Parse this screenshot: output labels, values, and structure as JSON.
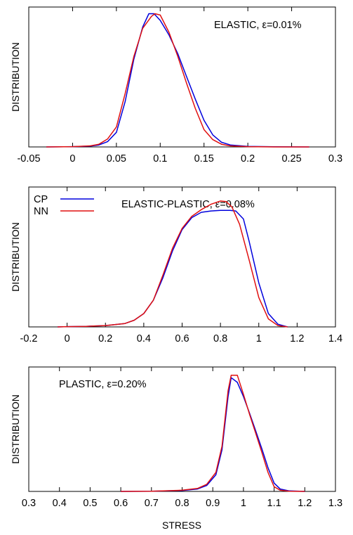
{
  "xlabel": "STRESS",
  "colors": {
    "cp": "#0000dd",
    "nn": "#e01010"
  },
  "chart_data": [
    {
      "type": "line",
      "ylabel": "DISTRIBUTION",
      "annotation": "ELASTIC, ε=0.01%",
      "xlim": [
        -0.05,
        0.3
      ],
      "ylim": [
        0,
        1.05
      ],
      "xticks": [
        "-0.05",
        "0",
        "0.05",
        "0.1",
        "0.15",
        "0.2",
        "0.25",
        "0.3"
      ],
      "xtick_values": [
        -0.05,
        0,
        0.05,
        0.1,
        0.15,
        0.2,
        0.25,
        0.3
      ],
      "series": [
        {
          "key": "cp",
          "x": [
            -0.03,
            0.0,
            0.02,
            0.03,
            0.04,
            0.05,
            0.06,
            0.07,
            0.08,
            0.087,
            0.093,
            0.1,
            0.11,
            0.12,
            0.13,
            0.14,
            0.15,
            0.16,
            0.17,
            0.18,
            0.2,
            0.23,
            0.27
          ],
          "y": [
            0,
            0.002,
            0.006,
            0.015,
            0.04,
            0.11,
            0.34,
            0.66,
            0.9,
            1.0,
            1.0,
            0.95,
            0.84,
            0.7,
            0.53,
            0.36,
            0.2,
            0.09,
            0.035,
            0.015,
            0.004,
            0.001,
            0
          ]
        },
        {
          "key": "nn",
          "x": [
            -0.03,
            0.0,
            0.02,
            0.03,
            0.04,
            0.05,
            0.06,
            0.07,
            0.08,
            0.09,
            0.094,
            0.1,
            0.11,
            0.12,
            0.13,
            0.14,
            0.15,
            0.16,
            0.17,
            0.18,
            0.2,
            0.23,
            0.27
          ],
          "y": [
            0,
            0.002,
            0.008,
            0.02,
            0.06,
            0.15,
            0.4,
            0.68,
            0.89,
            0.98,
            1.0,
            0.99,
            0.86,
            0.68,
            0.48,
            0.29,
            0.13,
            0.055,
            0.02,
            0.008,
            0.002,
            0,
            0
          ]
        }
      ]
    },
    {
      "type": "line",
      "ylabel": "DISTRIBUTION",
      "annotation": "ELASTIC-PLASTIC, ε=0.08%",
      "legend": {
        "placement": "top-left",
        "entries": [
          "CP",
          "NN"
        ]
      },
      "xlim": [
        -0.2,
        1.4
      ],
      "ylim": [
        0,
        1.05
      ],
      "xticks": [
        "-0.2",
        "0",
        "0.2",
        "0.4",
        "0.6",
        "0.8",
        "1",
        "1.2",
        "1.4"
      ],
      "xtick_values": [
        -0.2,
        0,
        0.2,
        0.4,
        0.6,
        0.8,
        1.0,
        1.2,
        1.4
      ],
      "series": [
        {
          "name": "CP",
          "key": "cp",
          "x": [
            -0.05,
            0.0,
            0.1,
            0.2,
            0.3,
            0.35,
            0.4,
            0.45,
            0.5,
            0.55,
            0.6,
            0.65,
            0.7,
            0.75,
            0.8,
            0.85,
            0.88,
            0.92,
            0.95,
            1.0,
            1.05,
            1.1,
            1.15
          ],
          "y": [
            0,
            0.002,
            0.004,
            0.01,
            0.025,
            0.05,
            0.1,
            0.2,
            0.37,
            0.57,
            0.73,
            0.82,
            0.86,
            0.87,
            0.875,
            0.875,
            0.87,
            0.81,
            0.64,
            0.33,
            0.1,
            0.02,
            0
          ]
        },
        {
          "name": "NN",
          "key": "nn",
          "x": [
            -0.05,
            0.0,
            0.1,
            0.2,
            0.3,
            0.35,
            0.4,
            0.45,
            0.5,
            0.55,
            0.6,
            0.65,
            0.7,
            0.75,
            0.8,
            0.83,
            0.86,
            0.9,
            0.95,
            1.0,
            1.05,
            1.1,
            1.15
          ],
          "y": [
            0,
            0.002,
            0.004,
            0.01,
            0.025,
            0.05,
            0.1,
            0.2,
            0.39,
            0.59,
            0.74,
            0.83,
            0.88,
            0.92,
            0.945,
            0.94,
            0.9,
            0.77,
            0.5,
            0.22,
            0.06,
            0.01,
            0
          ]
        }
      ]
    },
    {
      "type": "line",
      "ylabel": "DISTRIBUTION",
      "xlabel": "STRESS",
      "annotation": "PLASTIC, ε=0.20%",
      "xlim": [
        0.3,
        1.3
      ],
      "ylim": [
        0,
        1.05
      ],
      "xticks": [
        "0.3",
        "0.4",
        "0.5",
        "0.6",
        "0.7",
        "0.8",
        "0.9",
        "1",
        "1.1",
        "1.2",
        "1.3"
      ],
      "xtick_values": [
        0.3,
        0.4,
        0.5,
        0.6,
        0.7,
        0.8,
        0.9,
        1.0,
        1.1,
        1.2,
        1.3
      ],
      "series": [
        {
          "key": "cp",
          "x": [
            0.6,
            0.7,
            0.8,
            0.85,
            0.88,
            0.91,
            0.93,
            0.95,
            0.96,
            0.98,
            1.0,
            1.02,
            1.04,
            1.06,
            1.08,
            1.1,
            1.12,
            1.15,
            1.2
          ],
          "y": [
            0,
            0.002,
            0.008,
            0.02,
            0.05,
            0.14,
            0.35,
            0.8,
            0.96,
            0.92,
            0.8,
            0.66,
            0.51,
            0.36,
            0.2,
            0.07,
            0.02,
            0.004,
            0
          ]
        },
        {
          "key": "nn",
          "x": [
            0.6,
            0.7,
            0.8,
            0.85,
            0.88,
            0.91,
            0.93,
            0.95,
            0.96,
            0.98,
            1.0,
            1.02,
            1.04,
            1.06,
            1.08,
            1.1,
            1.12,
            1.15,
            1.2
          ],
          "y": [
            0,
            0.002,
            0.01,
            0.025,
            0.06,
            0.16,
            0.38,
            0.85,
            0.98,
            0.98,
            0.82,
            0.65,
            0.49,
            0.33,
            0.16,
            0.04,
            0.01,
            0.002,
            0
          ]
        }
      ]
    }
  ]
}
